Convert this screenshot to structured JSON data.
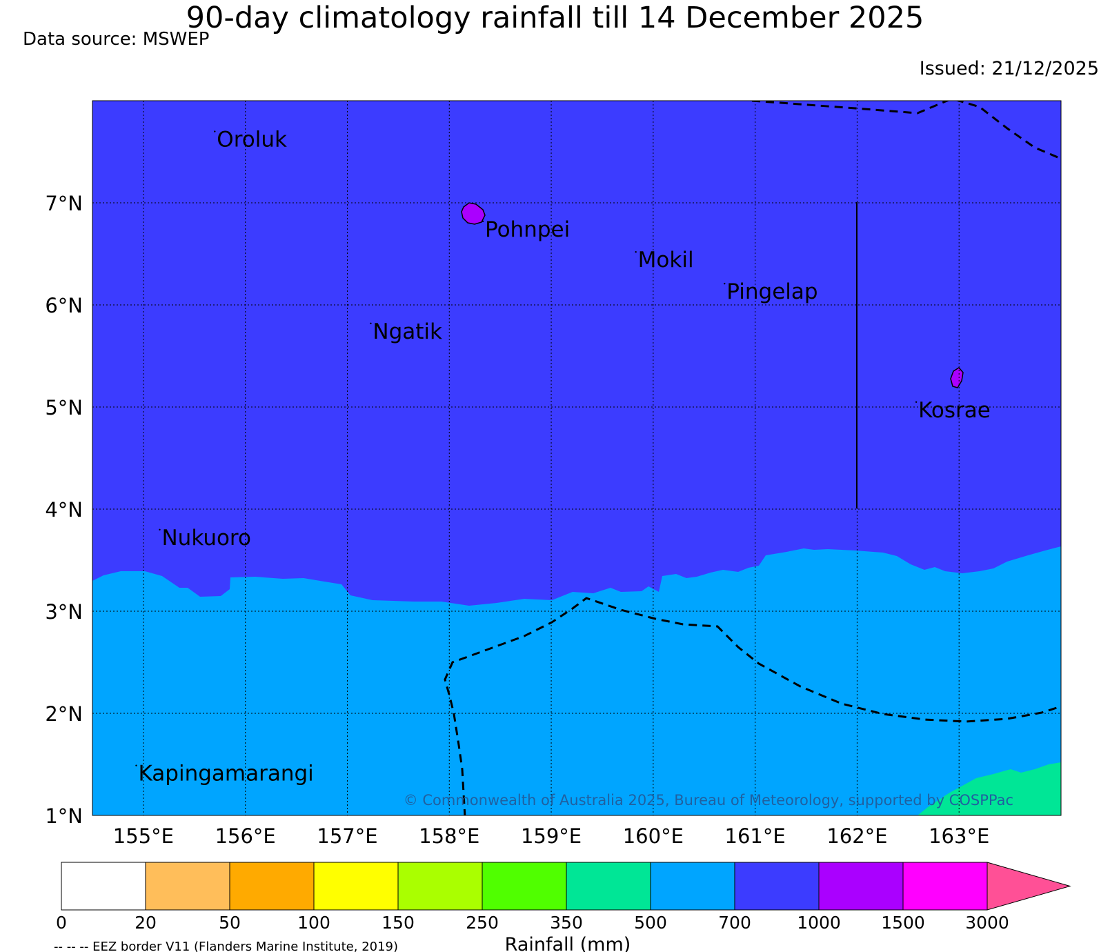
{
  "title": "90-day climatology rainfall till 14 December 2025",
  "data_source": "Data source: MSWEP",
  "issued": "Issued: 21/12/2025",
  "map": {
    "extent": {
      "lon_min": 154.5,
      "lon_max": 164.0,
      "lat_min": 1.0,
      "lat_max": 8.0
    },
    "lat_labels": [
      "1°N",
      "2°N",
      "3°N",
      "4°N",
      "5°N",
      "6°N",
      "7°N"
    ],
    "lat_values": [
      1,
      2,
      3,
      4,
      5,
      6,
      7
    ],
    "lon_labels": [
      "155°E",
      "156°E",
      "157°E",
      "158°E",
      "159°E",
      "160°E",
      "161°E",
      "162°E",
      "163°E"
    ],
    "lon_values": [
      155,
      156,
      157,
      158,
      159,
      160,
      161,
      162,
      163
    ],
    "islands": [
      {
        "name": "Oroluk",
        "lon": 155.72,
        "lat": 7.55
      },
      {
        "name": "Pohnpei",
        "lon": 158.35,
        "lat": 6.67
      },
      {
        "name": "Mokil",
        "lon": 159.85,
        "lat": 6.37
      },
      {
        "name": "Pingelap",
        "lon": 160.72,
        "lat": 6.06
      },
      {
        "name": "Ngatik",
        "lon": 157.25,
        "lat": 5.67
      },
      {
        "name": "Kosrae",
        "lon": 162.6,
        "lat": 4.9
      },
      {
        "name": "Nukuoro",
        "lon": 155.18,
        "lat": 3.65
      },
      {
        "name": "Kapingamarangi",
        "lon": 154.95,
        "lat": 1.34
      }
    ],
    "copyright": "© Commonwealth of Australia 2025, Bureau of Meteorology, supported by COSPPac",
    "colors": {
      "band_700_1000": "#3c3cff",
      "band_500_700": "#00a5ff",
      "band_350_500": "#00e696",
      "band_1000_1500": "#aa00ff"
    }
  },
  "colorbar": {
    "label": "Rainfall (mm)",
    "ticks": [
      "0",
      "20",
      "50",
      "100",
      "150",
      "250",
      "350",
      "500",
      "700",
      "1000",
      "1500",
      "3000"
    ],
    "colors": [
      "#ffffff",
      "#ffbe5a",
      "#ffaa00",
      "#ffff00",
      "#aaff00",
      "#50ff00",
      "#00e696",
      "#00a5ff",
      "#3c3cff",
      "#aa00ff",
      "#ff00ff",
      "#ff5096"
    ]
  },
  "footnote": "-- -- -- EEZ border V11 (Flanders Marine Institute, 2019)"
}
